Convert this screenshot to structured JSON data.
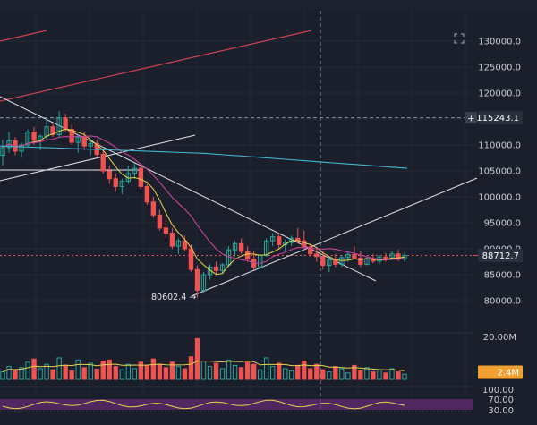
{
  "colors": {
    "background": "#1b1f2c",
    "up": "#26a69a",
    "down": "#ef5350",
    "ma_short": "#e8d34a",
    "ma_mid": "#c2449a",
    "ma_long": "#3fb7d0",
    "channel_upper": "#d04050",
    "trendline": "#e0e2ea",
    "price_tag_bg": "#2a2f3d",
    "volume_tag_bg": "#f0a030",
    "oscillator": "#7b2d8c"
  },
  "icons": {
    "expand": "expand-icon"
  },
  "chart_data": {
    "type": "candlestick",
    "price_axis": {
      "ticks": [
        "130000.0",
        "125000.0",
        "120000.0",
        "115000.0",
        "110000.0",
        "105000.0",
        "100000.0",
        "95000.0",
        "90000.0",
        "85000.0",
        "80000.0"
      ],
      "range": [
        77000,
        133000
      ]
    },
    "crosshair_price_label": "115243.1",
    "current_price_label": "88712.7",
    "low_annotation": "80602.4",
    "volume_axis": {
      "ticks": [
        "20.00M"
      ],
      "current_label": "2.4M"
    },
    "oscillator_axis": {
      "ticks": [
        "100.00",
        "70.00",
        "30.00"
      ]
    },
    "candles": [
      [
        108000,
        111000,
        106000,
        109500
      ],
      [
        109500,
        112500,
        108500,
        110800
      ],
      [
        110800,
        111500,
        108000,
        108800
      ],
      [
        108800,
        110500,
        107500,
        110000
      ],
      [
        110000,
        113000,
        109500,
        112500
      ],
      [
        112500,
        113500,
        110000,
        110900
      ],
      [
        110900,
        112000,
        109000,
        111700
      ],
      [
        111700,
        115000,
        111000,
        113500
      ],
      [
        113500,
        114200,
        111500,
        112000
      ],
      [
        112000,
        116500,
        111500,
        115200
      ],
      [
        115200,
        116000,
        112500,
        113000
      ],
      [
        113000,
        114000,
        110000,
        110500
      ],
      [
        110500,
        112000,
        108500,
        111500
      ],
      [
        111500,
        112500,
        109000,
        109800
      ],
      [
        109800,
        111000,
        108000,
        110300
      ],
      [
        110300,
        111000,
        107500,
        108200
      ],
      [
        108200,
        109000,
        104500,
        105000
      ],
      [
        105000,
        106000,
        102500,
        103500
      ],
      [
        103500,
        104500,
        101000,
        102000
      ],
      [
        102000,
        103500,
        100500,
        103000
      ],
      [
        103000,
        106000,
        102500,
        104500
      ],
      [
        104500,
        106500,
        103500,
        105500
      ],
      [
        105500,
        106200,
        101500,
        102000
      ],
      [
        102000,
        103000,
        98500,
        99000
      ],
      [
        99000,
        100000,
        96000,
        96500
      ],
      [
        96500,
        97500,
        93500,
        94000
      ],
      [
        94000,
        95500,
        92000,
        93000
      ],
      [
        93000,
        94000,
        90000,
        90500
      ],
      [
        90500,
        92000,
        89000,
        91500
      ],
      [
        91500,
        92500,
        89500,
        90000
      ],
      [
        90000,
        90800,
        85500,
        86000
      ],
      [
        86000,
        86800,
        80602,
        82000
      ],
      [
        82000,
        85500,
        81500,
        85000
      ],
      [
        85000,
        87000,
        84000,
        86500
      ],
      [
        86500,
        87500,
        85000,
        85800
      ],
      [
        85800,
        87200,
        85200,
        86900
      ],
      [
        86900,
        90500,
        86500,
        89800
      ],
      [
        89800,
        91500,
        88500,
        91000
      ],
      [
        91000,
        92000,
        89000,
        89500
      ],
      [
        89500,
        90500,
        87500,
        88000
      ],
      [
        88000,
        89500,
        86000,
        86500
      ],
      [
        86500,
        89000,
        86000,
        88700
      ],
      [
        88700,
        92000,
        88500,
        91500
      ],
      [
        91500,
        93000,
        90500,
        92300
      ],
      [
        92300,
        93000,
        90000,
        90800
      ],
      [
        90800,
        91800,
        89500,
        91200
      ],
      [
        91200,
        92500,
        90500,
        92000
      ],
      [
        92000,
        94000,
        91000,
        91500
      ],
      [
        91500,
        93500,
        90000,
        90300
      ],
      [
        90300,
        91000,
        88500,
        89000
      ],
      [
        89000,
        90000,
        87500,
        88500
      ],
      [
        88500,
        89500,
        86000,
        86800
      ],
      [
        86800,
        88500,
        85500,
        87900
      ],
      [
        87900,
        89000,
        86500,
        87000
      ],
      [
        87000,
        88800,
        86500,
        88300
      ],
      [
        88300,
        89500,
        87500,
        88900
      ],
      [
        88900,
        90500,
        88000,
        88200
      ],
      [
        88200,
        89500,
        86500,
        87000
      ],
      [
        87000,
        88500,
        86800,
        88100
      ],
      [
        88100,
        89000,
        87200,
        87600
      ],
      [
        87600,
        88800,
        87000,
        88400
      ],
      [
        88400,
        89200,
        87500,
        88000
      ],
      [
        88000,
        89500,
        87800,
        89000
      ],
      [
        89000,
        89800,
        87600,
        88000
      ],
      [
        88000,
        89300,
        87500,
        88712
      ]
    ],
    "volumes": [
      3.5,
      6.0,
      4.2,
      5.5,
      8.0,
      9.5,
      5.0,
      7.0,
      4.5,
      10.0,
      6.5,
      4.0,
      9.0,
      5.5,
      7.5,
      4.8,
      8.5,
      9.0,
      6.0,
      4.5,
      7.0,
      5.0,
      8.0,
      6.5,
      9.5,
      7.0,
      5.5,
      8.0,
      6.0,
      5.0,
      10.5,
      19.0,
      8.5,
      6.0,
      7.5,
      5.0,
      9.0,
      6.5,
      5.5,
      8.0,
      7.0,
      4.5,
      10.0,
      6.0,
      7.5,
      5.0,
      4.0,
      6.5,
      8.5,
      5.0,
      7.0,
      4.5,
      3.5,
      6.0,
      5.0,
      3.0,
      6.5,
      4.0,
      5.5,
      3.5,
      4.5,
      3.0,
      5.0,
      3.5,
      2.4
    ]
  }
}
